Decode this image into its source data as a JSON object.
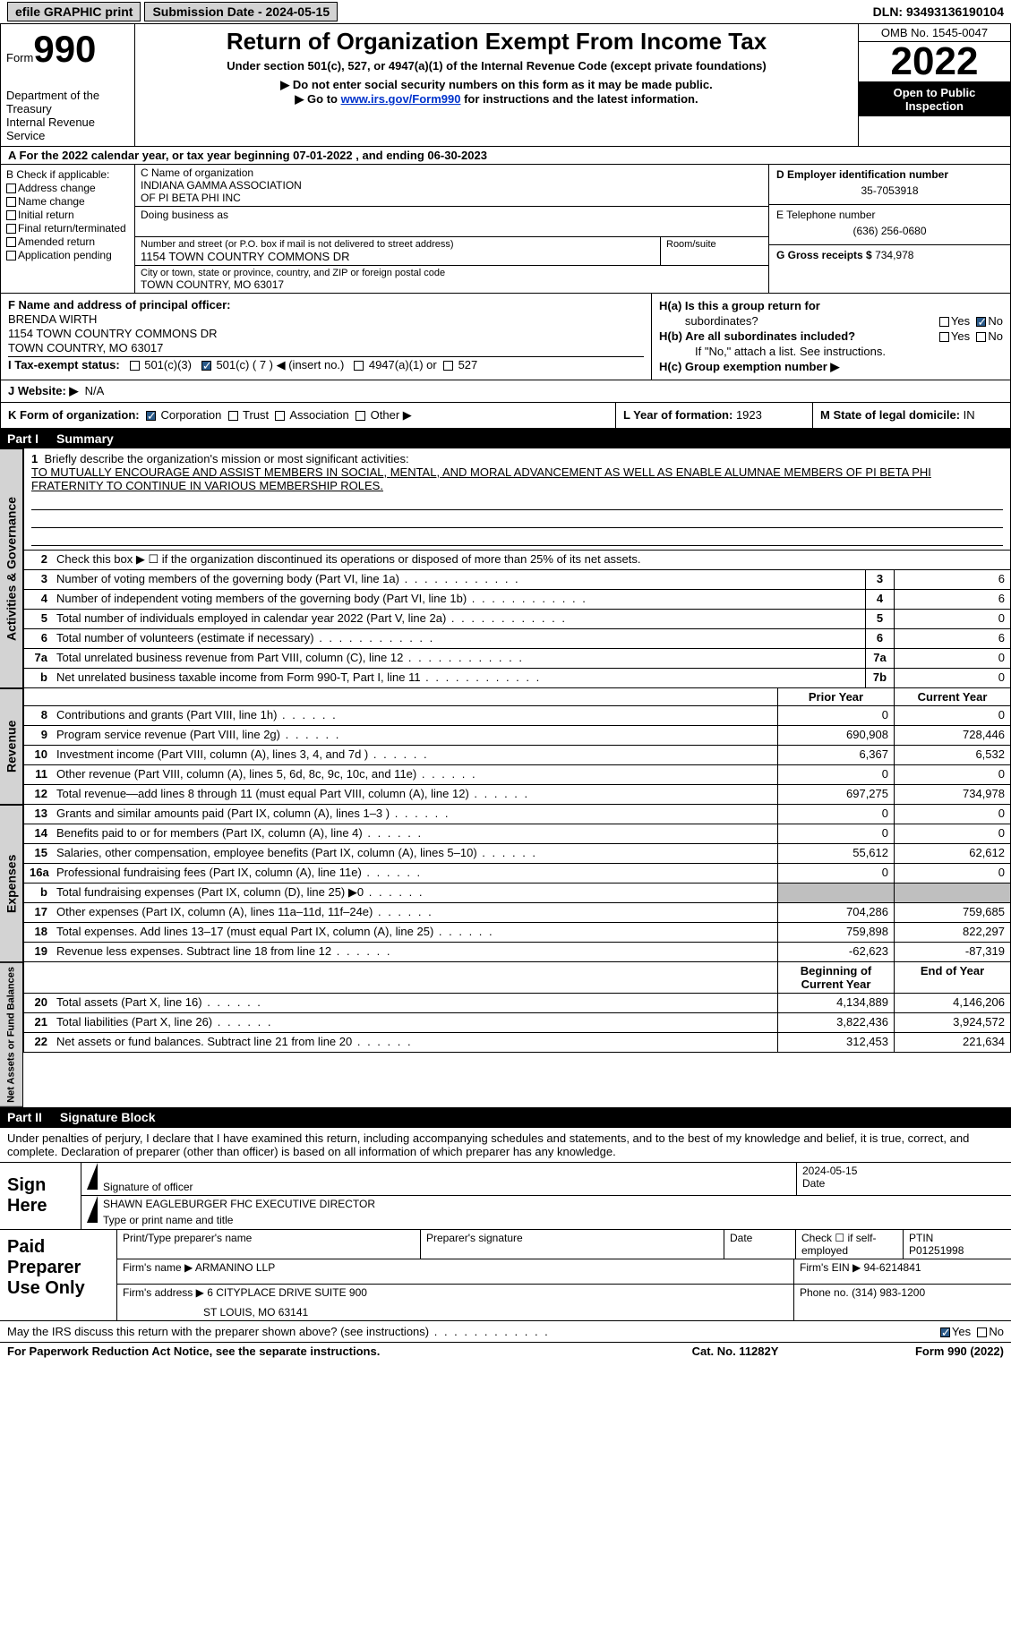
{
  "topbar": {
    "efile": "efile GRAPHIC print",
    "submission_label": "Submission Date - ",
    "submission_date": "2024-05-15",
    "dln_label": "DLN: ",
    "dln": "93493136190104"
  },
  "header": {
    "form_label": "Form",
    "form_number": "990",
    "dept": "Department of the Treasury",
    "irs": "Internal Revenue Service",
    "title": "Return of Organization Exempt From Income Tax",
    "subtitle": "Under section 501(c), 527, or 4947(a)(1) of the Internal Revenue Code (except private foundations)",
    "note1": "▶ Do not enter social security numbers on this form as it may be made public.",
    "note2_pre": "▶ Go to ",
    "note2_link": "www.irs.gov/Form990",
    "note2_post": " for instructions and the latest information.",
    "omb": "OMB No. 1545-0047",
    "year": "2022",
    "inspect1": "Open to Public",
    "inspect2": "Inspection"
  },
  "row_a": {
    "text_pre": "A For the 2022 calendar year, or tax year beginning ",
    "begin": "07-01-2022",
    "mid": " , and ending ",
    "end": "06-30-2023"
  },
  "col_b": {
    "label": "B Check if applicable:",
    "opts": [
      "Address change",
      "Name change",
      "Initial return",
      "Final return/terminated",
      "Amended return",
      "Application pending"
    ]
  },
  "col_c": {
    "name_label": "C Name of organization",
    "name1": "INDIANA GAMMA ASSOCIATION",
    "name2": "OF PI BETA PHI INC",
    "dba_label": "Doing business as",
    "street_label": "Number and street (or P.O. box if mail is not delivered to street address)",
    "street": "1154 TOWN COUNTRY COMMONS DR",
    "room_label": "Room/suite",
    "city_label": "City or town, state or province, country, and ZIP or foreign postal code",
    "city": "TOWN COUNTRY, MO  63017"
  },
  "col_d": {
    "d_label": "D Employer identification number",
    "ein": "35-7053918",
    "e_label": "E Telephone number",
    "phone": "(636) 256-0680",
    "g_label": "G Gross receipts $ ",
    "gross": "734,978"
  },
  "row_f": {
    "f_label": "F Name and address of principal officer:",
    "name": "BRENDA WIRTH",
    "addr1": "1154 TOWN COUNTRY COMMONS DR",
    "addr2": "TOWN COUNTRY, MO  63017",
    "i_label": "I Tax-exempt status:",
    "i_501c3": "501(c)(3)",
    "i_501c": "501(c) ( 7 ) ◀ (insert no.)",
    "i_4947": "4947(a)(1) or",
    "i_527": "527",
    "j_label": "J   Website: ▶",
    "website": "N/A"
  },
  "row_h": {
    "ha_label": "H(a)  Is this a group return for",
    "ha_label2": "subordinates?",
    "hb_label": "H(b)  Are all subordinates included?",
    "hb_note": "If \"No,\" attach a list. See instructions.",
    "hc_label": "H(c)  Group exemption number ▶",
    "yes": "Yes",
    "no": "No"
  },
  "row_k": {
    "k_label": "K Form of organization:",
    "corp": "Corporation",
    "trust": "Trust",
    "assoc": "Association",
    "other": "Other ▶",
    "l_label": "L Year of formation: ",
    "l_val": "1923",
    "m_label": "M State of legal domicile: ",
    "m_val": "IN"
  },
  "part1": {
    "label": "Part I",
    "title": "Summary"
  },
  "mission": {
    "num": "1",
    "label": "Briefly describe the organization's mission or most significant activities:",
    "text": "TO MUTUALLY ENCOURAGE AND ASSIST MEMBERS IN SOCIAL, MENTAL, AND MORAL ADVANCEMENT AS WELL AS ENABLE ALUMNAE MEMBERS OF PI BETA PHI FRATERNITY TO CONTINUE IN VARIOUS MEMBERSHIP ROLES."
  },
  "gov_lines": [
    {
      "num": "2",
      "desc": "Check this box ▶ ☐  if the organization discontinued its operations or disposed of more than 25% of its net assets.",
      "box": "",
      "val": ""
    },
    {
      "num": "3",
      "desc": "Number of voting members of the governing body (Part VI, line 1a)",
      "box": "3",
      "val": "6"
    },
    {
      "num": "4",
      "desc": "Number of independent voting members of the governing body (Part VI, line 1b)",
      "box": "4",
      "val": "6"
    },
    {
      "num": "5",
      "desc": "Total number of individuals employed in calendar year 2022 (Part V, line 2a)",
      "box": "5",
      "val": "0"
    },
    {
      "num": "6",
      "desc": "Total number of volunteers (estimate if necessary)",
      "box": "6",
      "val": "6"
    },
    {
      "num": "7a",
      "desc": "Total unrelated business revenue from Part VIII, column (C), line 12",
      "box": "7a",
      "val": "0"
    },
    {
      "num": "b",
      "desc": "Net unrelated business taxable income from Form 990-T, Part I, line 11",
      "box": "7b",
      "val": "0"
    }
  ],
  "col_hdrs": {
    "prior": "Prior Year",
    "current": "Current Year"
  },
  "revenue": [
    {
      "num": "8",
      "desc": "Contributions and grants (Part VIII, line 1h)",
      "v1": "0",
      "v2": "0"
    },
    {
      "num": "9",
      "desc": "Program service revenue (Part VIII, line 2g)",
      "v1": "690,908",
      "v2": "728,446"
    },
    {
      "num": "10",
      "desc": "Investment income (Part VIII, column (A), lines 3, 4, and 7d )",
      "v1": "6,367",
      "v2": "6,532"
    },
    {
      "num": "11",
      "desc": "Other revenue (Part VIII, column (A), lines 5, 6d, 8c, 9c, 10c, and 11e)",
      "v1": "0",
      "v2": "0"
    },
    {
      "num": "12",
      "desc": "Total revenue—add lines 8 through 11 (must equal Part VIII, column (A), line 12)",
      "v1": "697,275",
      "v2": "734,978"
    }
  ],
  "expenses": [
    {
      "num": "13",
      "desc": "Grants and similar amounts paid (Part IX, column (A), lines 1–3 )",
      "v1": "0",
      "v2": "0"
    },
    {
      "num": "14",
      "desc": "Benefits paid to or for members (Part IX, column (A), line 4)",
      "v1": "0",
      "v2": "0"
    },
    {
      "num": "15",
      "desc": "Salaries, other compensation, employee benefits (Part IX, column (A), lines 5–10)",
      "v1": "55,612",
      "v2": "62,612"
    },
    {
      "num": "16a",
      "desc": "Professional fundraising fees (Part IX, column (A), line 11e)",
      "v1": "0",
      "v2": "0"
    },
    {
      "num": "b",
      "desc": "Total fundraising expenses (Part IX, column (D), line 25) ▶0",
      "v1": "grey",
      "v2": "grey"
    },
    {
      "num": "17",
      "desc": "Other expenses (Part IX, column (A), lines 11a–11d, 11f–24e)",
      "v1": "704,286",
      "v2": "759,685"
    },
    {
      "num": "18",
      "desc": "Total expenses. Add lines 13–17 (must equal Part IX, column (A), line 25)",
      "v1": "759,898",
      "v2": "822,297"
    },
    {
      "num": "19",
      "desc": "Revenue less expenses. Subtract line 18 from line 12",
      "v1": "-62,623",
      "v2": "-87,319"
    }
  ],
  "net_hdrs": {
    "begin": "Beginning of Current Year",
    "end": "End of Year"
  },
  "netassets": [
    {
      "num": "20",
      "desc": "Total assets (Part X, line 16)",
      "v1": "4,134,889",
      "v2": "4,146,206"
    },
    {
      "num": "21",
      "desc": "Total liabilities (Part X, line 26)",
      "v1": "3,822,436",
      "v2": "3,924,572"
    },
    {
      "num": "22",
      "desc": "Net assets or fund balances. Subtract line 21 from line 20",
      "v1": "312,453",
      "v2": "221,634"
    }
  ],
  "part2": {
    "label": "Part II",
    "title": "Signature Block"
  },
  "sig": {
    "intro": "Under penalties of perjury, I declare that I have examined this return, including accompanying schedules and statements, and to the best of my knowledge and belief, it is true, correct, and complete. Declaration of preparer (other than officer) is based on all information of which preparer has any knowledge.",
    "sign_here": "Sign Here",
    "sig_label": "Signature of officer",
    "date_label": "Date",
    "date": "2024-05-15",
    "name": "SHAWN EAGLEBURGER  FHC EXECUTIVE DIRECTOR",
    "name_label": "Type or print name and title"
  },
  "prep": {
    "label": "Paid Preparer Use Only",
    "print_label": "Print/Type preparer's name",
    "psig_label": "Preparer's signature",
    "pdate_label": "Date",
    "check_label": "Check ☐ if self-employed",
    "ptin_label": "PTIN",
    "ptin": "P01251998",
    "firm_name_label": "Firm's name    ▶ ",
    "firm_name": "ARMANINO LLP",
    "firm_ein_label": "Firm's EIN ▶ ",
    "firm_ein": "94-6214841",
    "firm_addr_label": "Firm's address ▶ ",
    "firm_addr1": "6 CITYPLACE DRIVE SUITE 900",
    "firm_addr2": "ST LOUIS, MO  63141",
    "phone_label": "Phone no. ",
    "phone": "(314) 983-1200"
  },
  "footer": {
    "q": "May the IRS discuss this return with the preparer shown above? (see instructions)",
    "yes": "Yes",
    "no": "No",
    "paperwork": "For Paperwork Reduction Act Notice, see the separate instructions.",
    "cat": "Cat. No. 11282Y",
    "form": "Form 990 (2022)"
  },
  "vlabels": {
    "gov": "Activities & Governance",
    "rev": "Revenue",
    "exp": "Expenses",
    "net": "Net Assets or Fund Balances"
  }
}
